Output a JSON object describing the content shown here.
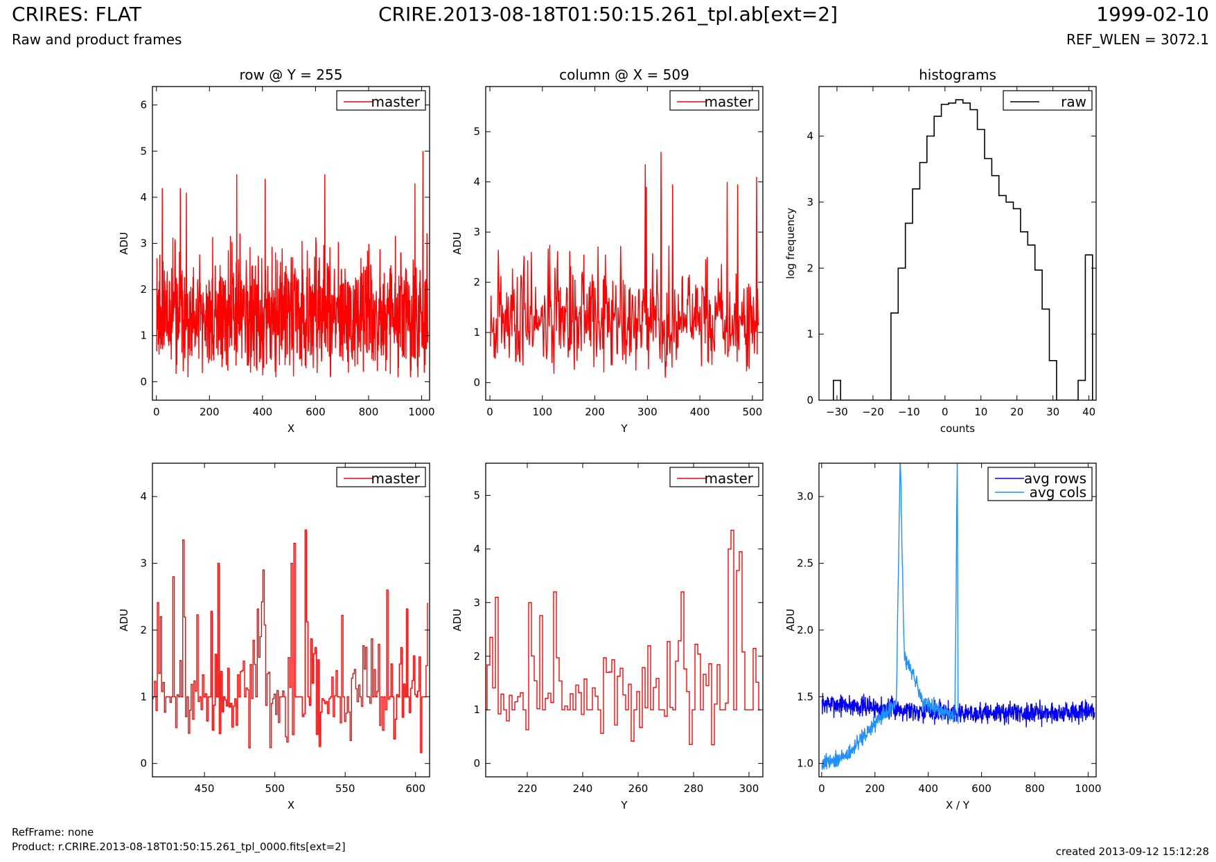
{
  "header": {
    "title": "CRIRES: FLAT",
    "subtitle": "Raw and product frames",
    "filename": "CRIRE.2013-08-18T01:50:15.261_tpl.ab[ext=2]",
    "date": "1999-02-10",
    "ref_wlen": "REF_WLEN = 3072.1"
  },
  "footer": {
    "refframe": "RefFrame: none",
    "product": "Product: r.CRIRE.2013-08-18T01:50:15.261_tpl_0000.fits[ext=2]",
    "created": "created 2013-09-12 15:12:28"
  },
  "colors": {
    "master": "#ff0000",
    "raw": "#000000",
    "avg_rows": "#0000ff",
    "avg_cols": "#1e90ff"
  },
  "chart_data": [
    {
      "id": "row",
      "type": "line",
      "title": "row @ Y = 255",
      "xlabel": "X",
      "ylabel": "ADU",
      "xlim": [
        -15,
        1030
      ],
      "ylim": [
        -0.4,
        6.4
      ],
      "xticks": [
        0,
        200,
        400,
        600,
        800,
        1000
      ],
      "yticks": [
        0,
        1,
        2,
        3,
        4,
        5,
        6
      ],
      "legend": "top-right",
      "series": [
        {
          "name": "master",
          "color": "#ff0000",
          "style": "noise",
          "n": 1024,
          "x_start": 1,
          "x_step": 1,
          "base": 1.3,
          "spread": 1.2,
          "min": 0.1,
          "max": 5.0,
          "seed": 11,
          "spikes": [
            [
              22,
              4.2
            ],
            [
              90,
              4.2
            ],
            [
              113,
              4.1
            ],
            [
              303,
              4.5
            ],
            [
              410,
              4.4
            ],
            [
              635,
              4.5
            ],
            [
              975,
              4.3
            ],
            [
              1005,
              5.0
            ]
          ]
        }
      ]
    },
    {
      "id": "column",
      "type": "line",
      "title": "column @ X = 509",
      "xlabel": "Y",
      "ylabel": "ADU",
      "xlim": [
        -8,
        520
      ],
      "ylim": [
        -0.35,
        5.9
      ],
      "xticks": [
        0,
        100,
        200,
        300,
        400,
        500
      ],
      "yticks": [
        0,
        1,
        2,
        3,
        4,
        5
      ],
      "legend": "top-right",
      "series": [
        {
          "name": "master",
          "color": "#ff0000",
          "style": "noise",
          "n": 512,
          "x_start": 1,
          "x_step": 1,
          "base": 1.15,
          "spread": 1.0,
          "min": 0.1,
          "max": 4.6,
          "seed": 23,
          "spikes": [
            [
              296,
              4.35
            ],
            [
              298,
              3.9
            ],
            [
              326,
              4.6
            ],
            [
              348,
              3.95
            ],
            [
              452,
              4.0
            ],
            [
              472,
              3.95
            ],
            [
              508,
              4.1
            ]
          ]
        }
      ]
    },
    {
      "id": "histograms",
      "type": "step",
      "title": "histograms",
      "xlabel": "counts",
      "ylabel": "log frequency",
      "xlim": [
        -35,
        42
      ],
      "ylim": [
        0,
        4.75
      ],
      "xticks": [
        -30,
        -20,
        -10,
        0,
        10,
        20,
        30,
        40
      ],
      "yticks": [
        0,
        1,
        2,
        3,
        4
      ],
      "legend": "top-right",
      "series": [
        {
          "name": "raw",
          "color": "#000000",
          "edges": [
            -31,
            -29,
            -27,
            -25,
            -23,
            -21,
            -19,
            -17,
            -15,
            -13,
            -11,
            -9,
            -7,
            -5,
            -3,
            -1,
            1,
            3,
            5,
            7,
            9,
            11,
            13,
            15,
            17,
            19,
            21,
            23,
            25,
            27,
            29,
            31,
            33,
            35,
            37,
            39,
            41
          ],
          "values": [
            0.3,
            0,
            0,
            0,
            0,
            0,
            0,
            0,
            1.32,
            2.0,
            2.68,
            3.2,
            3.6,
            4.0,
            4.3,
            4.48,
            4.5,
            4.55,
            4.5,
            4.4,
            4.1,
            3.66,
            3.4,
            3.1,
            3.0,
            2.9,
            2.55,
            2.35,
            1.97,
            1.38,
            0.6,
            0,
            0,
            0,
            0.3,
            2.2
          ]
        }
      ]
    },
    {
      "id": "row-zoom",
      "type": "line",
      "title": "",
      "xlabel": "X",
      "ylabel": "ADU",
      "xlim": [
        413,
        610
      ],
      "ylim": [
        -0.2,
        4.5
      ],
      "xticks": [
        450,
        500,
        550,
        600
      ],
      "yticks": [
        0,
        1,
        2,
        3,
        4
      ],
      "legend": "top-right",
      "series": [
        {
          "name": "master",
          "color": "#ff0000",
          "style": "steps",
          "n": 197,
          "x_start": 413,
          "x_step": 1,
          "base": 1.0,
          "spread": 0.9,
          "min": 0.15,
          "max": 3.5,
          "seed": 5,
          "spikes": [
            [
              419,
              2.2
            ],
            [
              428,
              2.8
            ],
            [
              435,
              3.35
            ],
            [
              460,
              3.0
            ],
            [
              492,
              2.9
            ],
            [
              512,
              3.0
            ],
            [
              514,
              3.3
            ],
            [
              522,
              3.5
            ],
            [
              580,
              2.6
            ],
            [
              609,
              2.4
            ]
          ]
        }
      ]
    },
    {
      "id": "column-zoom",
      "type": "line",
      "title": "",
      "xlabel": "Y",
      "ylabel": "ADU",
      "xlim": [
        205,
        305
      ],
      "ylim": [
        -0.25,
        5.6
      ],
      "xticks": [
        220,
        240,
        260,
        280,
        300
      ],
      "yticks": [
        0,
        1,
        2,
        3,
        4,
        5
      ],
      "legend": "top-right",
      "series": [
        {
          "name": "master",
          "color": "#ff0000",
          "style": "steps",
          "n": 100,
          "x_start": 205,
          "x_step": 1,
          "base": 1.35,
          "spread": 1.1,
          "min": 0.2,
          "max": 4.35,
          "seed": 31,
          "spikes": [
            [
              209,
              3.1
            ],
            [
              221,
              3.0
            ],
            [
              230,
              3.2
            ],
            [
              276,
              3.2
            ],
            [
              293,
              4.0
            ],
            [
              294,
              4.35
            ],
            [
              296,
              3.6
            ],
            [
              297,
              3.95
            ]
          ]
        }
      ]
    },
    {
      "id": "averages",
      "type": "line",
      "title": "",
      "xlabel": "X / Y",
      "ylabel": "ADU",
      "xlim": [
        -10,
        1030
      ],
      "ylim": [
        0.9,
        3.25
      ],
      "xticks": [
        0,
        200,
        400,
        600,
        800,
        1000
      ],
      "yticks": [
        1.0,
        1.5,
        2.0,
        2.5,
        3.0
      ],
      "yticklabels": [
        "1.0",
        "1.5",
        "2.0",
        "2.5",
        "3.0"
      ],
      "legend": "top-right",
      "series": [
        {
          "name": "avg rows",
          "color": "#0000ff",
          "style": "trend",
          "n": 1024,
          "x_start": 1,
          "x_step": 1,
          "trend": [
            [
              0,
              1.45
            ],
            [
              500,
              1.38
            ],
            [
              1024,
              1.38
            ]
          ],
          "noise": 0.05,
          "seed": 7
        },
        {
          "name": "avg cols",
          "color": "#1e90ff",
          "style": "trend",
          "n": 512,
          "x_start": 1,
          "x_step": 1,
          "trend": [
            [
              0,
              1.0
            ],
            [
              100,
              1.07
            ],
            [
              200,
              1.3
            ],
            [
              280,
              1.45
            ],
            [
              295,
              3.3
            ],
            [
              310,
              1.8
            ],
            [
              340,
              1.7
            ],
            [
              380,
              1.45
            ],
            [
              500,
              1.35
            ],
            [
              509,
              3.3
            ],
            [
              512,
              1.3
            ]
          ],
          "noise": 0.04,
          "seed": 9
        }
      ]
    }
  ]
}
